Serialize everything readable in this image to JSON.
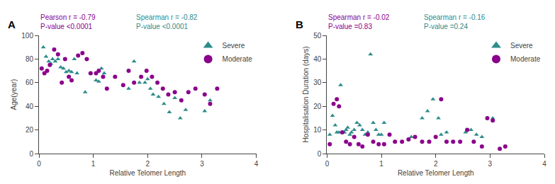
{
  "chart_data": [
    {
      "type": "scatter",
      "title": "A",
      "x_label": "Relative Telomer Length",
      "y_label": "Age(year)",
      "xlim": [
        0,
        4
      ],
      "ylim": [
        0,
        100
      ],
      "xticks": [
        0,
        1,
        2,
        3,
        4
      ],
      "yticks": [
        0,
        20,
        40,
        60,
        80,
        100
      ],
      "grid": false,
      "legend": "upper right",
      "annotations": [
        {
          "text": "Pearson r = -0.79\nP-value <0.0001",
          "color": "#8B008B"
        },
        {
          "text": "Spearman r = -0.82\nP-value <0.0001",
          "color": "#2E8B8B"
        }
      ],
      "series": [
        {
          "name": "Severe",
          "color": "#2E8B8B",
          "marker": "triangle-up",
          "x": [
            0.08,
            0.13,
            0.18,
            0.22,
            0.25,
            0.3,
            0.35,
            0.4,
            0.45,
            0.5,
            0.55,
            0.6,
            0.65,
            0.7,
            0.85,
            0.95,
            1.05,
            1.1,
            1.15,
            1.2,
            1.65,
            1.75,
            1.85,
            1.95,
            2.0,
            2.05,
            2.1,
            2.2,
            2.3,
            2.4,
            2.5,
            2.6,
            2.7,
            3.05,
            3.15
          ],
          "values": [
            90,
            82,
            78,
            76,
            80,
            78,
            80,
            73,
            72,
            69,
            70,
            69,
            80,
            68,
            52,
            68,
            62,
            61,
            72,
            68,
            55,
            78,
            60,
            60,
            63,
            55,
            50,
            48,
            42,
            35,
            47,
            30,
            37,
            36,
            45
          ]
        },
        {
          "name": "Moderate",
          "color": "#8B008B",
          "marker": "circle",
          "x": [
            0.05,
            0.1,
            0.15,
            0.2,
            0.28,
            0.35,
            0.42,
            0.48,
            0.55,
            0.6,
            0.72,
            0.8,
            0.88,
            0.95,
            1.05,
            1.1,
            1.18,
            1.25,
            1.4,
            1.55,
            1.65,
            1.75,
            1.88,
            1.98,
            2.08,
            2.18,
            2.28,
            2.38,
            2.5,
            2.62,
            2.75,
            2.88,
            3.05,
            3.15,
            3.28
          ],
          "values": [
            72,
            68,
            70,
            75,
            88,
            84,
            60,
            80,
            65,
            62,
            83,
            85,
            80,
            68,
            68,
            70,
            65,
            55,
            65,
            58,
            70,
            60,
            65,
            70,
            65,
            60,
            55,
            50,
            52,
            45,
            52,
            55,
            50,
            42,
            55
          ]
        }
      ]
    },
    {
      "type": "scatter",
      "title": "B",
      "x_label": "Relative Telomer Length",
      "y_label": "Hospitalisation Duration (days)",
      "xlim": [
        0,
        4
      ],
      "ylim": [
        0,
        50
      ],
      "xticks": [
        0,
        1,
        2,
        3,
        4
      ],
      "yticks": [
        0,
        10,
        20,
        30,
        40,
        50
      ],
      "grid": false,
      "legend": "upper right",
      "annotations": [
        {
          "text": "Spearman r = -0.02\nP-value =0.83",
          "color": "#8B008B"
        },
        {
          "text": "Spearman r = -0.16\nP-value =0.24",
          "color": "#2E8B8B"
        }
      ],
      "series": [
        {
          "name": "Severe",
          "color": "#2E8B8B",
          "marker": "triangle-up",
          "x": [
            0.05,
            0.1,
            0.15,
            0.18,
            0.22,
            0.25,
            0.28,
            0.32,
            0.35,
            0.38,
            0.42,
            0.45,
            0.5,
            0.55,
            0.6,
            0.65,
            0.7,
            0.75,
            0.8,
            0.85,
            0.9,
            0.95,
            1.0,
            1.05,
            1.55,
            1.75,
            1.85,
            1.95,
            2.05,
            2.1,
            2.2,
            2.55,
            2.65,
            2.75,
            2.85,
            3.05
          ],
          "values": [
            8,
            16,
            12,
            9,
            9,
            29,
            9,
            9,
            10,
            11,
            8,
            9,
            10,
            13,
            12,
            10,
            8,
            9,
            42,
            13,
            10,
            8,
            8,
            13,
            7,
            15,
            18,
            23,
            15,
            8,
            9,
            9,
            10,
            8,
            7,
            15
          ]
        },
        {
          "name": "Moderate",
          "color": "#8B008B",
          "marker": "circle",
          "x": [
            0.05,
            0.12,
            0.18,
            0.22,
            0.28,
            0.35,
            0.42,
            0.5,
            0.58,
            0.65,
            0.75,
            0.85,
            0.95,
            1.05,
            1.15,
            1.25,
            1.38,
            1.5,
            1.62,
            1.75,
            1.88,
            2.0,
            2.1,
            2.2,
            2.32,
            2.45,
            2.58,
            2.7,
            2.85,
            2.95,
            3.05,
            3.18,
            3.28
          ],
          "values": [
            4,
            21,
            23,
            20,
            9,
            5,
            4,
            7,
            4,
            3,
            8,
            5,
            4,
            4,
            8,
            5,
            5,
            6,
            7,
            5,
            5,
            7,
            23,
            5,
            5,
            5,
            10,
            5,
            3,
            15,
            14,
            2,
            3
          ]
        }
      ]
    }
  ]
}
